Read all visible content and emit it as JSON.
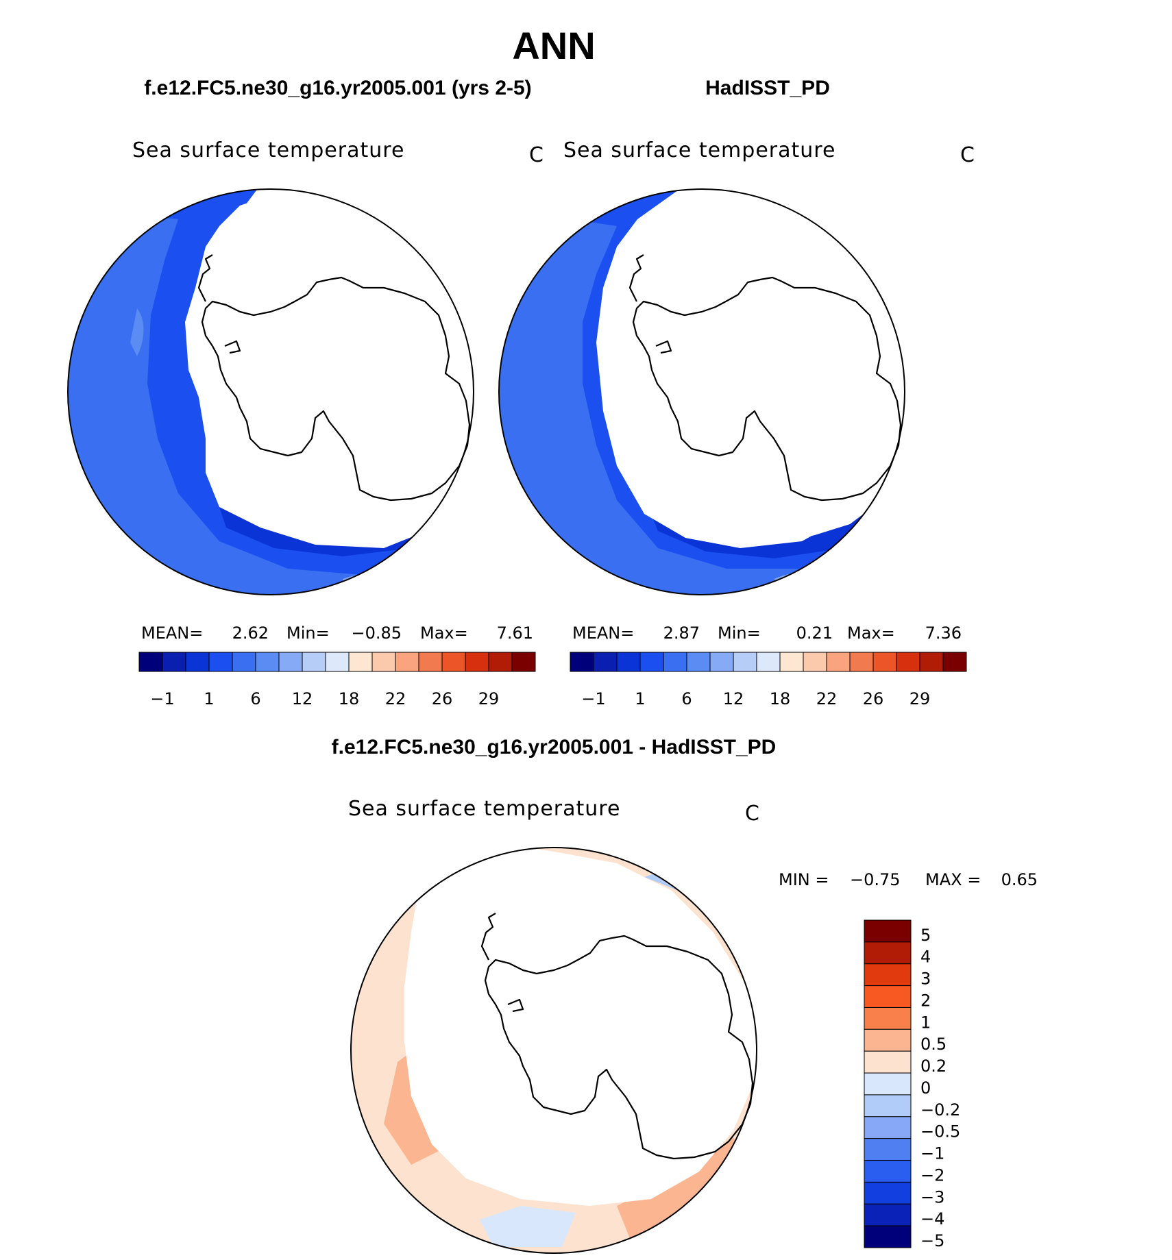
{
  "title": "ANN",
  "panels": [
    {
      "id": "model",
      "case_title": "f.e12.FC5.ne30_g16.yr2005.001 (yrs 2-5)",
      "field_label": "Sea surface temperature",
      "units": "C",
      "stats": {
        "mean_label": "MEAN=",
        "mean": "2.62",
        "min_label": "Min=",
        "min": "−0.85",
        "max_label": "Max=",
        "max": "7.61"
      }
    },
    {
      "id": "obs",
      "case_title": "HadISST_PD",
      "field_label": "Sea surface temperature",
      "units": "C",
      "stats": {
        "mean_label": "MEAN=",
        "mean": "2.87",
        "min_label": "Min=",
        "min": "0.21",
        "max_label": "Max=",
        "max": "7.36"
      }
    }
  ],
  "diff_panel": {
    "case_title": "f.e12.FC5.ne30_g16.yr2005.001 - HadISST_PD",
    "field_label": "Sea surface temperature",
    "units": "C",
    "min_label": "MIN =",
    "min": "−0.75",
    "max_label": "MAX =",
    "max": "0.65"
  },
  "chart_data": [
    {
      "type": "heatmap",
      "projection": "south-polar-stereographic",
      "title": "f.e12.FC5.ne30_g16.yr2005.001 (yrs 2-5)",
      "variable": "Sea surface temperature",
      "units": "C",
      "mean": 2.62,
      "min": -0.85,
      "max": 7.61,
      "colorbar": {
        "orientation": "horizontal",
        "levels": [
          -1,
          1,
          6,
          12,
          18,
          22,
          26,
          29
        ],
        "tick_labels": [
          "−1",
          "1",
          "6",
          "12",
          "18",
          "22",
          "26",
          "29"
        ],
        "colors": [
          "#00007a",
          "#0a1fb0",
          "#0b34d6",
          "#1b4ff0",
          "#3a6ff2",
          "#5a8cf4",
          "#86aaf6",
          "#b6cdf8",
          "#dde9fb",
          "#fde6d2",
          "#fbc9ab",
          "#f9a47e",
          "#f27a4f",
          "#ec5527",
          "#d6300e",
          "#b01c06",
          "#7a0000"
        ]
      }
    },
    {
      "type": "heatmap",
      "projection": "south-polar-stereographic",
      "title": "HadISST_PD",
      "variable": "Sea surface temperature",
      "units": "C",
      "mean": 2.87,
      "min": 0.21,
      "max": 7.36,
      "colorbar": {
        "orientation": "horizontal",
        "levels": [
          -1,
          1,
          6,
          12,
          18,
          22,
          26,
          29
        ],
        "tick_labels": [
          "−1",
          "1",
          "6",
          "12",
          "18",
          "22",
          "26",
          "29"
        ],
        "colors": [
          "#00007a",
          "#0a1fb0",
          "#0b34d6",
          "#1b4ff0",
          "#3a6ff2",
          "#5a8cf4",
          "#86aaf6",
          "#b6cdf8",
          "#dde9fb",
          "#fde6d2",
          "#fbc9ab",
          "#f9a47e",
          "#f27a4f",
          "#ec5527",
          "#d6300e",
          "#b01c06",
          "#7a0000"
        ]
      }
    },
    {
      "type": "heatmap",
      "projection": "south-polar-stereographic",
      "title": "f.e12.FC5.ne30_g16.yr2005.001 - HadISST_PD",
      "variable": "Sea surface temperature",
      "units": "C",
      "min": -0.75,
      "max": 0.65,
      "colorbar": {
        "orientation": "vertical",
        "levels": [
          5,
          4,
          3,
          2,
          1,
          0.5,
          0.2,
          0,
          -0.2,
          -0.5,
          -1,
          -2,
          -3,
          -4,
          -5
        ],
        "tick_labels": [
          "5",
          "4",
          "3",
          "2",
          "1",
          "0.5",
          "0.2",
          "0",
          "−0.2",
          "−0.5",
          "−1",
          "−2",
          "−3",
          "−4",
          "−5"
        ],
        "colors": [
          "#7a0000",
          "#b01c06",
          "#e03a0e",
          "#f85822",
          "#f97f4b",
          "#fbb591",
          "#fde3cf",
          "#d8e7fb",
          "#b1ccf8",
          "#86a8f6",
          "#4f7ff0",
          "#2a5ef0",
          "#1240e0",
          "#0a22b8",
          "#00007a"
        ]
      }
    }
  ]
}
